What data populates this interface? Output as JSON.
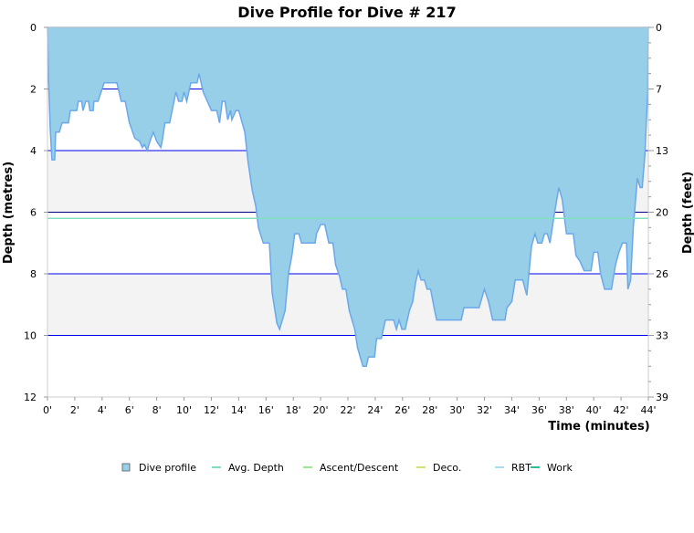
{
  "chart_data": {
    "type": "area",
    "title": "Dive Profile for Dive # 217",
    "xlabel": "Time (minutes)",
    "ylabel": "Depth (metres)",
    "ylabel_right": "Depth (feet)",
    "xlim": [
      0,
      44
    ],
    "ylim": [
      0,
      12
    ],
    "y_inverted": true,
    "x_ticks": [
      "0'",
      "2'",
      "4'",
      "6'",
      "8'",
      "10'",
      "12'",
      "14'",
      "16'",
      "18'",
      "20'",
      "22'",
      "24'",
      "26'",
      "28'",
      "30'",
      "32'",
      "34'",
      "36'",
      "38'",
      "40'",
      "42'",
      "44'"
    ],
    "y_ticks": [
      "0",
      "2",
      "4",
      "6",
      "8",
      "10",
      "12"
    ],
    "y_right_ticks": [
      "0",
      "7",
      "13",
      "20",
      "26",
      "33",
      "39"
    ],
    "grid": true,
    "legend_position": "bottom",
    "legend": [
      {
        "label": "Dive profile",
        "color": "#97cfe9"
      },
      {
        "label": "Avg. Depth",
        "color": "#7fe0c0"
      },
      {
        "label": "Ascent/Descent",
        "color": "#99e699"
      },
      {
        "label": "Deco.",
        "color": "#d8dd77"
      },
      {
        "label": "RBT",
        "color": "#a8dcf3"
      },
      {
        "label": "Work",
        "color": "#33bb99"
      }
    ],
    "avg_depth": 6.2,
    "series": [
      {
        "name": "Dive profile",
        "color": "#97cfe9",
        "line_color": "#6aa8ea",
        "x": [
          0,
          0.07,
          0.2,
          0.33,
          0.53,
          0.6,
          0.87,
          1.07,
          1.54,
          1.67,
          2.14,
          2.27,
          2.5,
          2.6,
          2.8,
          3.0,
          3.1,
          3.35,
          3.4,
          3.7,
          4.15,
          5.08,
          5.4,
          5.7,
          6.0,
          6.4,
          6.75,
          6.95,
          7.1,
          7.3,
          7.5,
          7.75,
          8.0,
          8.3,
          8.4,
          8.6,
          8.95,
          9.4,
          9.6,
          9.85,
          10.0,
          10.2,
          10.5,
          10.95,
          11.1,
          11.4,
          11.7,
          12.0,
          12.4,
          12.6,
          12.8,
          13.0,
          13.2,
          13.4,
          13.5,
          13.8,
          14.0,
          14.45,
          14.7,
          15.0,
          15.25,
          15.45,
          15.8,
          16.25,
          16.45,
          16.8,
          17.0,
          17.4,
          17.65,
          17.9,
          18.1,
          18.4,
          18.6,
          19.6,
          19.7,
          20.0,
          20.3,
          20.6,
          20.9,
          21.1,
          21.4,
          21.6,
          21.85,
          22.1,
          22.5,
          22.7,
          23.1,
          23.35,
          23.5,
          23.95,
          24.1,
          24.45,
          24.75,
          25.35,
          25.55,
          25.75,
          25.95,
          26.2,
          26.5,
          26.75,
          26.95,
          27.15,
          27.35,
          27.6,
          27.8,
          28.05,
          28.35,
          28.5,
          30.3,
          30.5,
          31.6,
          32.0,
          32.3,
          32.6,
          33.5,
          33.65,
          34.0,
          34.25,
          34.8,
          35.1,
          35.45,
          35.7,
          35.9,
          36.2,
          36.4,
          36.6,
          36.8,
          37.1,
          37.45,
          37.7,
          38.0,
          38.5,
          38.7,
          39.0,
          39.3,
          39.8,
          40.0,
          40.3,
          40.5,
          40.8,
          41.3,
          41.6,
          41.85,
          42.1,
          42.4,
          42.5,
          42.7,
          42.9,
          43.2,
          43.4,
          43.55,
          43.75,
          43.95,
          44
        ],
        "depth": [
          0,
          1.5,
          3.3,
          4.3,
          4.3,
          3.4,
          3.4,
          3.1,
          3.1,
          2.7,
          2.7,
          2.4,
          2.4,
          2.7,
          2.4,
          2.4,
          2.7,
          2.7,
          2.4,
          2.4,
          1.8,
          1.8,
          2.4,
          2.4,
          3.1,
          3.6,
          3.7,
          3.9,
          3.8,
          4.0,
          3.7,
          3.4,
          3.7,
          3.9,
          3.7,
          3.1,
          3.1,
          2.1,
          2.4,
          2.4,
          2.1,
          2.4,
          1.8,
          1.8,
          1.5,
          2.1,
          2.4,
          2.7,
          2.7,
          3.1,
          2.4,
          2.4,
          3.0,
          2.7,
          3.0,
          2.7,
          2.7,
          3.4,
          4.4,
          5.3,
          5.8,
          6.5,
          7.0,
          7.0,
          8.6,
          9.6,
          9.8,
          9.2,
          8.0,
          7.4,
          6.7,
          6.7,
          7.0,
          7.0,
          6.7,
          6.4,
          6.4,
          7.0,
          7.0,
          7.7,
          8.1,
          8.5,
          8.5,
          9.2,
          9.8,
          10.4,
          11.0,
          11.0,
          10.7,
          10.7,
          10.1,
          10.1,
          9.5,
          9.5,
          9.8,
          9.5,
          9.8,
          9.8,
          9.2,
          8.9,
          8.3,
          7.9,
          8.2,
          8.2,
          8.5,
          8.5,
          9.2,
          9.5,
          9.5,
          9.1,
          9.1,
          8.5,
          8.9,
          9.5,
          9.5,
          9.1,
          8.9,
          8.2,
          8.2,
          8.7,
          7.1,
          6.7,
          7.0,
          7.0,
          6.7,
          6.7,
          7.0,
          6.1,
          5.2,
          5.6,
          6.7,
          6.7,
          7.4,
          7.6,
          7.9,
          7.9,
          7.3,
          7.3,
          8.0,
          8.5,
          8.5,
          7.7,
          7.3,
          7.0,
          7.0,
          8.5,
          8.2,
          6.5,
          4.9,
          5.2,
          5.2,
          4.1,
          2.1,
          0
        ]
      }
    ]
  }
}
